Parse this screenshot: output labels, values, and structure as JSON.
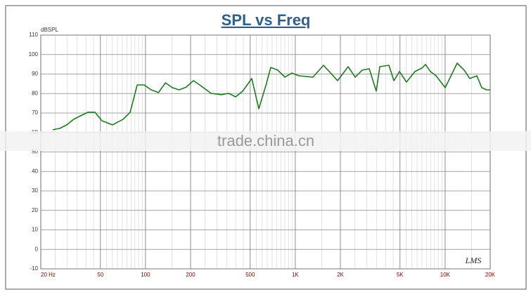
{
  "chart_data": {
    "type": "line",
    "title": "SPL vs Freq",
    "y_label": "dBSPL",
    "logo": "LMS",
    "watermark": "trade.china.cn",
    "x_log": true,
    "grid": true,
    "color": "#1f7a1f",
    "x": [
      24,
      26.8,
      29.8,
      33.2,
      37,
      41.3,
      46,
      51.2,
      60.2,
      70.9,
      79,
      88,
      98,
      109,
      122,
      136,
      151,
      168,
      187,
      209,
      233,
      274,
      322,
      359,
      400,
      445,
      512,
      571,
      636,
      686,
      764,
      852,
      949,
      1057,
      1312,
      1543,
      1916,
      2253,
      2510,
      2796,
      3116,
      3471,
      3664,
      4217,
      4550,
      4962,
      5527,
      6293,
      7010,
      7400,
      7980,
      8700,
      10013,
      12030,
      13400,
      14620,
      16290,
      17570,
      18950,
      20000
    ],
    "values": [
      61.4,
      62.1,
      63.9,
      66.8,
      68.6,
      70.4,
      70.4,
      66,
      63.9,
      66.8,
      70.4,
      84.4,
      84.4,
      81.9,
      80.5,
      85.5,
      83,
      81.9,
      83.3,
      86.6,
      84.1,
      80.1,
      79.4,
      80.1,
      78.3,
      81.2,
      87.7,
      72.2,
      84.1,
      93.4,
      92,
      88.4,
      90.5,
      89.1,
      88.4,
      94.5,
      86.6,
      93.8,
      88.4,
      92,
      92.7,
      81.2,
      93.8,
      94.5,
      86.6,
      91.3,
      85.9,
      91.3,
      93.1,
      94.9,
      91.3,
      89.1,
      83,
      95.6,
      92,
      87.7,
      89.1,
      83,
      81.9,
      81.9
    ],
    "xlim": [
      20,
      20000
    ],
    "ylim": [
      -10,
      110
    ],
    "xticks": [
      {
        "value": 20,
        "label": "20 Hz"
      },
      50,
      100,
      200,
      500,
      {
        "value": 1000,
        "label": "1K"
      },
      {
        "value": 2000,
        "label": "2K"
      },
      {
        "value": 5000,
        "label": "5K"
      },
      {
        "value": 10000,
        "label": "10K"
      },
      {
        "value": 20000,
        "label": "20K"
      }
    ],
    "yticks": [
      -10,
      0,
      10,
      20,
      30,
      40,
      50,
      60,
      70,
      80,
      90,
      100,
      110
    ]
  }
}
